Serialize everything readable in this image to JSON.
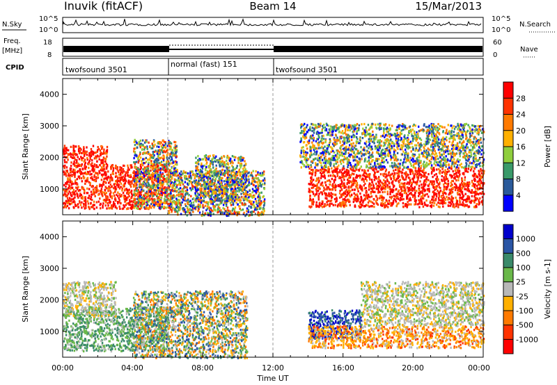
{
  "header": {
    "station": "Inuvik (fitACF)",
    "beam": "Beam 14",
    "date": "15/Mar/2013"
  },
  "strip_labels": {
    "nsky": "N.Sky",
    "nsearch": "N.Search",
    "freq": "Freq.",
    "freq_unit": "[MHz]",
    "nave": "Nave",
    "cpid": "CPID",
    "noise_ticks": [
      "10^5",
      "10^0"
    ],
    "freq_ticks": [
      "18",
      "8"
    ],
    "nave_ticks": [
      "60",
      "0"
    ]
  },
  "cpid_segments": [
    {
      "label": "twofsound 3501",
      "start": 0,
      "end": 6
    },
    {
      "label": "normal (fast) 151",
      "start": 6,
      "end": 12
    },
    {
      "label": "twofsound 3501",
      "start": 12,
      "end": 24
    }
  ],
  "x_axis": {
    "label": "Time UT",
    "ticks": [
      "00:00",
      "04:00",
      "08:00",
      "12:00",
      "16:00",
      "20:00",
      "00:00"
    ]
  },
  "chart_data": [
    {
      "type": "heatmap",
      "title": "Power",
      "ylabel": "Slant Range [km]",
      "xlim": [
        0,
        24
      ],
      "ylim": [
        180,
        4500
      ],
      "yticks": [
        1000,
        2000,
        3000,
        4000
      ],
      "colorbar": {
        "label": "Power [dB]",
        "ticks": [
          "28",
          "24",
          "20",
          "16",
          "12",
          "8",
          "4"
        ],
        "colors": [
          "#ff0000",
          "#ff3300",
          "#ff7a00",
          "#ffb000",
          "#8fce3d",
          "#3a9a6a",
          "#2a5a9a",
          "#0000ff"
        ]
      },
      "regions": [
        {
          "t0": 0.0,
          "t1": 6.0,
          "r0": 400,
          "r1": 1800,
          "level": "high"
        },
        {
          "t0": 0.0,
          "t1": 2.5,
          "r0": 1800,
          "r1": 2400,
          "level": "high"
        },
        {
          "t0": 4.0,
          "t1": 6.5,
          "r0": 400,
          "r1": 2600,
          "level": "mid"
        },
        {
          "t0": 6.0,
          "t1": 11.5,
          "r0": 180,
          "r1": 1600,
          "level": "mid"
        },
        {
          "t0": 7.5,
          "t1": 10.5,
          "r0": 600,
          "r1": 2100,
          "level": "mixed"
        },
        {
          "t0": 14.0,
          "t1": 24.0,
          "r0": 450,
          "r1": 1700,
          "level": "high"
        },
        {
          "t0": 13.5,
          "t1": 24.0,
          "r0": 1700,
          "r1": 3100,
          "level": "mixed"
        }
      ]
    },
    {
      "type": "heatmap",
      "title": "Velocity",
      "ylabel": "Slant Range [km]",
      "xlim": [
        0,
        24
      ],
      "ylim": [
        180,
        4500
      ],
      "yticks": [
        1000,
        2000,
        3000,
        4000
      ],
      "colorbar": {
        "label": "Velocity [m s-1]",
        "ticks": [
          "1000",
          "500",
          "100",
          "25",
          "-25",
          "-100",
          "-500",
          "-1000"
        ],
        "colors": [
          "#0000cc",
          "#2a55a5",
          "#3a8a6a",
          "#6ab84a",
          "#b8b8b8",
          "#ffb000",
          "#ff7a00",
          "#ff3300",
          "#ff0000"
        ]
      },
      "regions": [
        {
          "t0": 0.0,
          "t1": 6.0,
          "r0": 400,
          "r1": 1800,
          "level": "green"
        },
        {
          "t0": 0.0,
          "t1": 3.0,
          "r0": 1500,
          "r1": 2600,
          "level": "grey"
        },
        {
          "t0": 4.0,
          "t1": 10.5,
          "r0": 180,
          "r1": 2300,
          "level": "mixed"
        },
        {
          "t0": 14.0,
          "t1": 17.0,
          "r0": 800,
          "r1": 1700,
          "level": "blue"
        },
        {
          "t0": 14.0,
          "t1": 24.0,
          "r0": 500,
          "r1": 1200,
          "level": "orange"
        },
        {
          "t0": 17.0,
          "t1": 24.0,
          "r0": 1200,
          "r1": 2600,
          "level": "grey"
        }
      ]
    }
  ]
}
